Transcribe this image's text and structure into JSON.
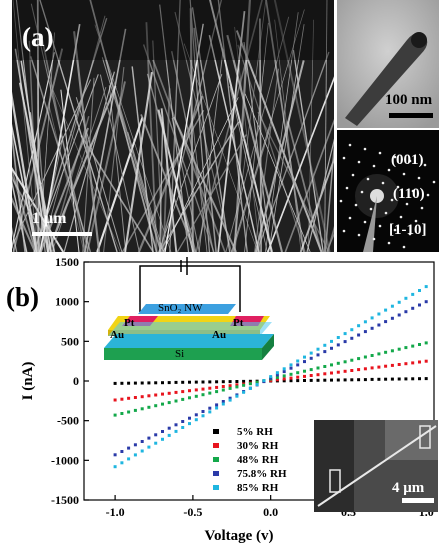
{
  "panel_a": {
    "label": "(a)",
    "sem_scale": "1 μm",
    "tem_scale": "100 nm",
    "saed_labels": [
      "(001)",
      "(110)",
      "[1-10]"
    ]
  },
  "panel_b": {
    "label": "(b)",
    "schematic": {
      "nw_label": "SnO₂ NW",
      "pt_left": "Pt",
      "pt_right": "Pt",
      "au_left": "Au",
      "au_right": "Au",
      "si": "Si"
    },
    "inset_scale": "4 μm"
  },
  "chart_data": {
    "type": "scatter",
    "xlabel": "Voltage (v)",
    "ylabel": "I (nA)",
    "xlim": [
      -1.2,
      1.05
    ],
    "ylim": [
      -1500,
      1500
    ],
    "xticks": [
      "-1.0",
      "-0.5",
      "0.0",
      "0.5",
      "1.0"
    ],
    "yticks": [
      "-1500",
      "-1000",
      "-500",
      "0",
      "500",
      "1000",
      "1500"
    ],
    "legend_position": "bottom-center",
    "series": [
      {
        "name": "5% RH",
        "color": "#000000",
        "x": [
          -1.0,
          1.0
        ],
        "y": [
          -30,
          30
        ]
      },
      {
        "name": "30% RH",
        "color": "#e8141e",
        "x": [
          -1.0,
          1.0
        ],
        "y": [
          -240,
          250
        ]
      },
      {
        "name": "48% RH",
        "color": "#13a84a",
        "x": [
          -1.0,
          1.0
        ],
        "y": [
          -430,
          480
        ]
      },
      {
        "name": "75.8% RH",
        "color": "#2a3aa8",
        "x": [
          -1.0,
          1.0
        ],
        "y": [
          -930,
          1000
        ]
      },
      {
        "name": "85% RH",
        "color": "#1fb6e0",
        "x": [
          -1.0,
          1.0
        ],
        "y": [
          -1080,
          1190
        ]
      }
    ]
  }
}
